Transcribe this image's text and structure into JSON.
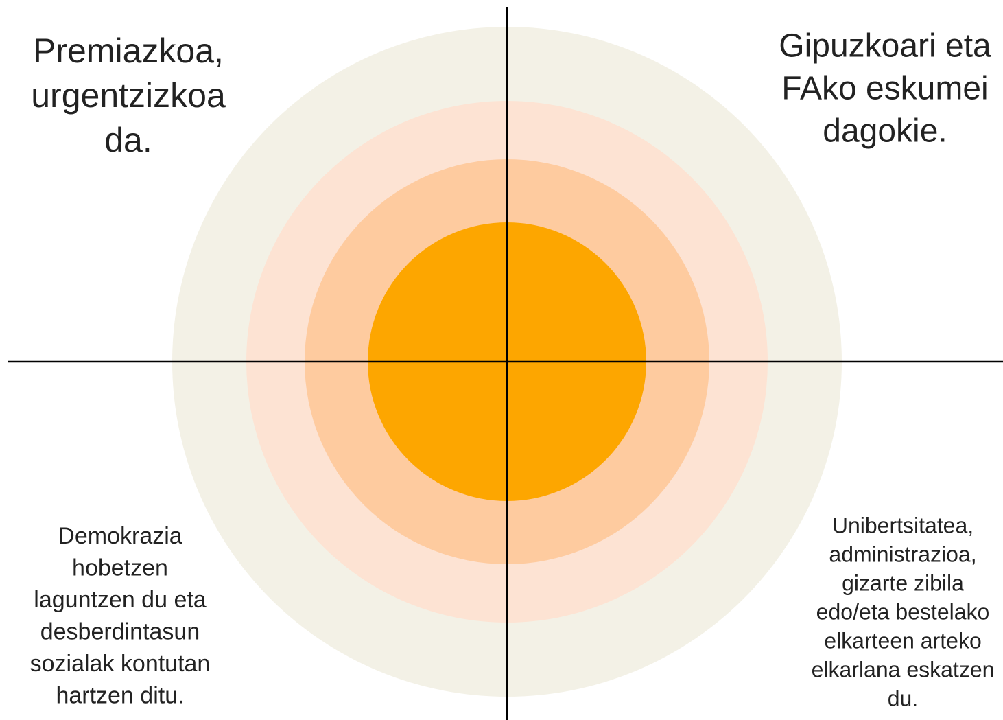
{
  "quadrants": [
    {
      "position": "top-left",
      "lines": [
        "Premiazkoa,",
        "urgentzizkoa",
        "da."
      ]
    },
    {
      "position": "top-right",
      "lines": [
        "Gipuzkoari eta",
        "FAko eskumei",
        "dagokie."
      ]
    },
    {
      "position": "bottom-left",
      "lines": [
        "Demokrazia",
        "hobetzen",
        "laguntzen du eta",
        "desberdintasun",
        "sozialak kontutan",
        "hartzen ditu."
      ]
    },
    {
      "position": "bottom-right",
      "lines": [
        "Unibertsitatea,",
        "administrazioa,",
        "gizarte zibila",
        "edo/eta bestelako",
        "elkarteen arteko",
        "elkarlana eskatzen",
        "du."
      ]
    }
  ]
}
